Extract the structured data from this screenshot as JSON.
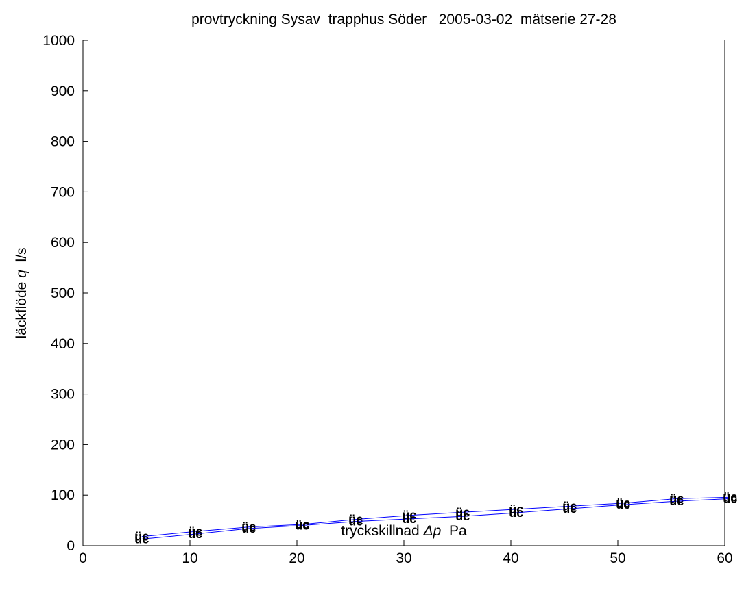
{
  "chart_data": {
    "type": "line",
    "title": "provtryckning Sysav  trapphus Söder   2005-03-02  mätserie 27-28",
    "xlabel": {
      "prefix": "tryckskillnad ",
      "symbol": "Δp",
      "suffix": "  Pa"
    },
    "ylabel": {
      "prefix": "läckflöde ",
      "symbol": "q",
      "suffix": "  l/s"
    },
    "xlim": [
      0,
      60
    ],
    "ylim": [
      0,
      1000
    ],
    "xticks": [
      0,
      10,
      20,
      30,
      40,
      50,
      60
    ],
    "yticks": [
      0,
      100,
      200,
      300,
      400,
      500,
      600,
      700,
      800,
      900,
      1000
    ],
    "grid": false,
    "line_color": "#0000ff",
    "marker_text": "üc",
    "marker_color": "#000000",
    "series": [
      {
        "x": [
          5.5,
          10.5,
          15.5,
          20.5,
          25.5,
          30.5,
          35.5,
          40.5,
          45.5,
          50.5,
          55.5,
          60.5
        ],
        "y": [
          18,
          28,
          37,
          42,
          52,
          60,
          66,
          72,
          78,
          84,
          93,
          96
        ]
      },
      {
        "x": [
          5.5,
          10.5,
          15.5,
          20.5,
          25.5,
          30.5,
          35.5,
          40.5,
          45.5,
          50.5,
          55.5,
          60.5
        ],
        "y": [
          13,
          23,
          34,
          40,
          48,
          53,
          58,
          65,
          73,
          81,
          88,
          93
        ]
      }
    ]
  }
}
